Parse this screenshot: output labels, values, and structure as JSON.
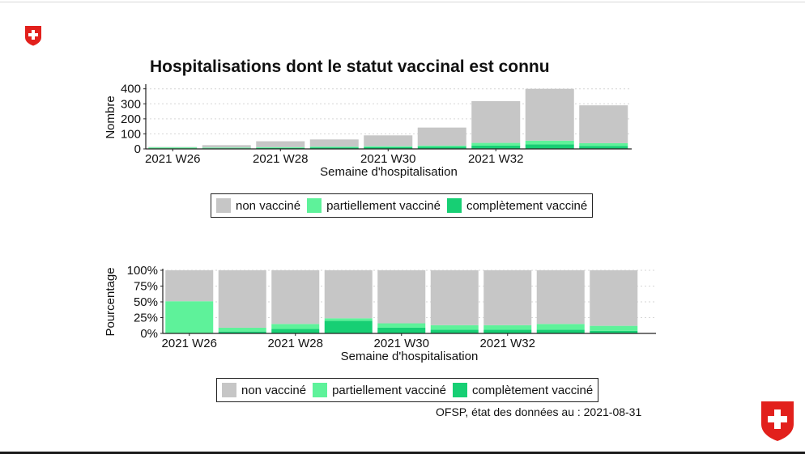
{
  "title": "Hospitalisations dont le statut vaccinal est connu",
  "source_note": "OFSP, état des données au : 2021-08-31",
  "colors": {
    "non_vaccine": "#c6c6c6",
    "partiel": "#5ef29a",
    "complet": "#17cf74",
    "brand_red": "#e2201c"
  },
  "icons": {
    "top_left": "swiss-cross-shield-icon",
    "bottom_right": "swiss-cross-shield-icon"
  },
  "legend": {
    "non_vaccine": "non vacciné",
    "partiel": "partiellement vacciné",
    "complet": "complètement vacciné"
  },
  "chart_data": [
    {
      "type": "bar",
      "stacked": true,
      "xlabel": "Semaine d'hospitalisation",
      "ylabel": "Nombre",
      "ylim": [
        0,
        420
      ],
      "yticks": [
        0,
        100,
        200,
        300,
        400
      ],
      "ytick_labels": [
        "0",
        "100",
        "200",
        "300",
        "400"
      ],
      "x_tick_labels": [
        {
          "index": 0,
          "label": "2021 W26"
        },
        {
          "index": 2,
          "label": "2021 W28"
        },
        {
          "index": 4,
          "label": "2021 W30"
        },
        {
          "index": 6,
          "label": "2021 W32"
        }
      ],
      "series": [
        {
          "name": "complètement vacciné",
          "key": "complet",
          "values": [
            2,
            4,
            6,
            10,
            12,
            15,
            22,
            30,
            20
          ]
        },
        {
          "name": "partiellement vacciné",
          "key": "partiel",
          "values": [
            8,
            5,
            5,
            5,
            6,
            7,
            18,
            25,
            18
          ]
        },
        {
          "name": "non vacciné",
          "key": "non_vaccine",
          "values": [
            3,
            16,
            40,
            48,
            72,
            120,
            278,
            345,
            252
          ]
        }
      ],
      "grid": true,
      "legend_position": "bottom"
    },
    {
      "type": "bar",
      "stacked": true,
      "xlabel": "Semaine d'hospitalisation",
      "ylabel": "Pourcentage",
      "ylim": [
        0,
        100
      ],
      "yticks": [
        0,
        25,
        50,
        75,
        100
      ],
      "ytick_labels": [
        "0%",
        "25%",
        "50%",
        "75%",
        "100%"
      ],
      "x_tick_labels": [
        {
          "index": 0,
          "label": "2021 W26"
        },
        {
          "index": 2,
          "label": "2021 W28"
        },
        {
          "index": 4,
          "label": "2021 W30"
        },
        {
          "index": 6,
          "label": "2021 W32"
        }
      ],
      "series": [
        {
          "name": "complètement vacciné",
          "key": "complet",
          "values": [
            0,
            3,
            7,
            20,
            9,
            6,
            6,
            6,
            4
          ]
        },
        {
          "name": "partiellement vacciné",
          "key": "partiel",
          "values": [
            51,
            6,
            8,
            4,
            7,
            7,
            7,
            9,
            8
          ]
        },
        {
          "name": "non vacciné",
          "key": "non_vaccine",
          "values": [
            49,
            91,
            85,
            76,
            84,
            87,
            87,
            85,
            88
          ]
        }
      ],
      "grid": true,
      "legend_position": "bottom"
    }
  ]
}
